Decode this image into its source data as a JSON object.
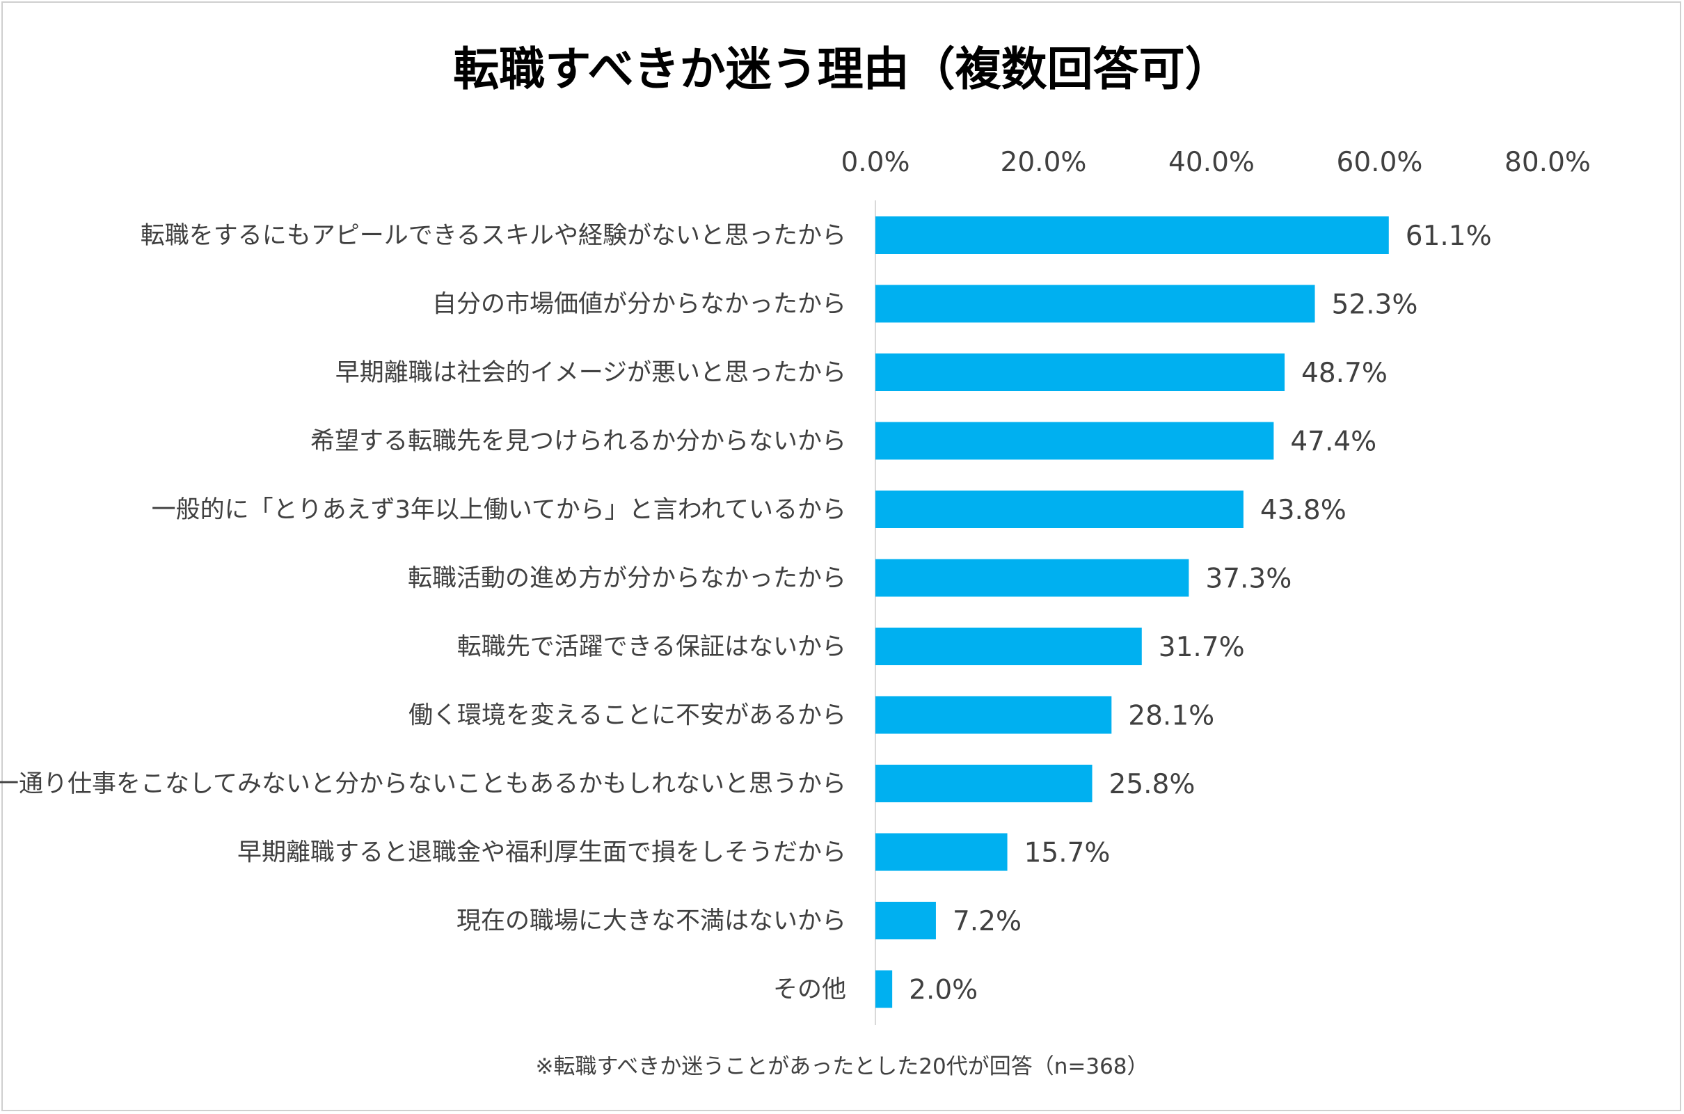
{
  "chart_data": {
    "type": "bar",
    "orientation": "horizontal",
    "title": "転職すべきか迷う理由（複数回答可）",
    "categories": [
      "転職をするにもアピールできるスキルや経験がないと思ったから",
      "自分の市場価値が分からなかったから",
      "早期離職は社会的イメージが悪いと思ったから",
      "希望する転職先を見つけられるか分からないから",
      "一般的に「とりあえず3年以上働いてから」と言われているから",
      "転職活動の進め方が分からなかったから",
      "転職先で活躍できる保証はないから",
      "働く環境を変えることに不安があるから",
      "一通り仕事をこなしてみないと分からないこともあるかもしれないと思うから",
      "早期離職すると退職金や福利厚生面で損をしそうだから",
      "現在の職場に大きな不満はないから",
      "その他"
    ],
    "values": [
      61.1,
      52.3,
      48.7,
      47.4,
      43.8,
      37.3,
      31.7,
      28.1,
      25.8,
      15.7,
      7.2,
      2.0
    ],
    "data_labels": [
      "61.1%",
      "52.3%",
      "48.7%",
      "47.4%",
      "43.8%",
      "37.3%",
      "31.7%",
      "28.1%",
      "25.8%",
      "15.7%",
      "7.2%",
      "2.0%"
    ],
    "x_ticks": [
      0,
      20,
      40,
      60,
      80
    ],
    "x_tick_labels": [
      "0.0%",
      "20.0%",
      "40.0%",
      "60.0%",
      "80.0%"
    ],
    "xlim": [
      0,
      80
    ],
    "axis_position": "top",
    "grid": false,
    "legend": "none",
    "bar_color": "#00b0f0",
    "note": "※転職すべきか迷うことがあったとした20代が回答（n=368）"
  }
}
